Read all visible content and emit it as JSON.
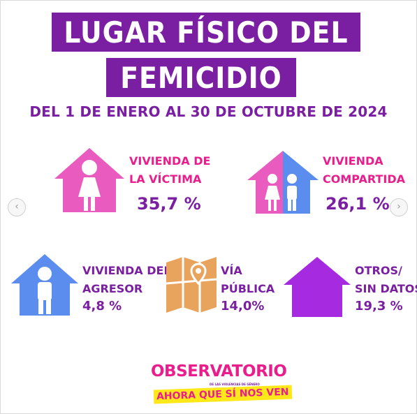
{
  "title": {
    "line1": "LUGAR FÍSICO DEL",
    "line2": "FEMICIDIO",
    "subtitle": "DEL 1 DE ENERO AL 30 DE OCTUBRE DE 2024"
  },
  "items": [
    {
      "label_line1": "VIVIENDA DE",
      "label_line2": "LA VÍCTIMA",
      "percent": "35,7 %",
      "icon": "pink-house-woman-icon"
    },
    {
      "label_line1": "VIVIENDA",
      "label_line2": "COMPARTIDA",
      "percent": "26,1 %",
      "icon": "pink-blue-house-couple-icon"
    },
    {
      "label_line1": "VIVIENDA DEL",
      "label_line2": "AGRESOR",
      "percent": "4,8 %",
      "icon": "blue-house-man-icon"
    },
    {
      "label_line1": "VÍA",
      "label_line2": "PÚBLICA",
      "percent": "14,0%",
      "icon": "map-pin-icon"
    },
    {
      "label_line1": "OTROS/",
      "label_line2": "SIN DATOS",
      "percent": "19,3 %",
      "icon": "purple-house-icon"
    }
  ],
  "logo": {
    "main": "OBSERVATORIO",
    "small": "DE LAS VIOLENCIAS DE GÉNERO",
    "tagline": "AHORA QUE SÍ NOS VEN"
  },
  "nav": {
    "prev": "‹",
    "next": "›"
  },
  "colors": {
    "purple": "#7b1fa2",
    "pink": "#e91e8c",
    "blue": "#5b8def",
    "map": "#e8a35c",
    "yellow": "#ffe81a"
  }
}
